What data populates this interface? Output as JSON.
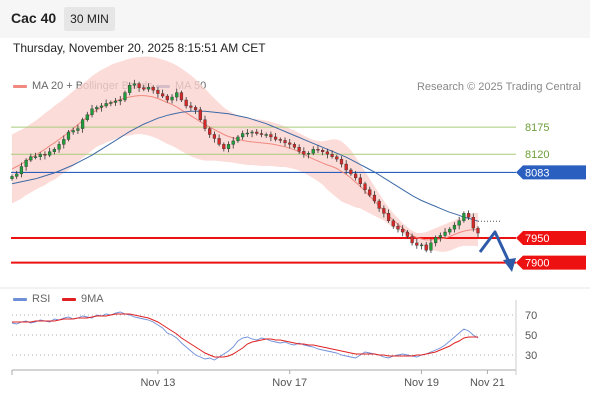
{
  "header": {
    "symbol": "Cac 40",
    "timeframe": "30 MIN",
    "datetime": "Thursday, November 20, 2025 8:15:51 AM CET"
  },
  "legend": {
    "ma_bb": {
      "label": "MA 20 + Bollinger Bands",
      "color": "#f08a80"
    },
    "ma50": {
      "label": "MA 50",
      "color": "#3d6aa6"
    },
    "credit": "Research © 2025 Trading Central"
  },
  "rsi_legend": {
    "rsi": {
      "label": "RSI",
      "color": "#6f8fd8"
    },
    "ma9": {
      "label": "9MA",
      "color": "#e02020"
    }
  },
  "chart_data": [
    {
      "type": "candlestick",
      "ylim": [
        7885,
        8230
      ],
      "levels": [
        {
          "value": 8175,
          "label": "8175",
          "kind": "resistance"
        },
        {
          "value": 8120,
          "label": "8120",
          "kind": "resistance"
        },
        {
          "value": 8083,
          "label": "8083",
          "kind": "pivot"
        },
        {
          "value": 7950,
          "label": "7950",
          "kind": "support"
        },
        {
          "value": 7900,
          "label": "7900",
          "kind": "support"
        }
      ],
      "x_tick_labels": [
        "Nov 13",
        "Nov 17",
        "Nov 19",
        "Nov 21"
      ],
      "close": [
        8075,
        8080,
        8095,
        8108,
        8115,
        8115,
        8120,
        8118,
        8125,
        8130,
        8140,
        8150,
        8165,
        8168,
        8172,
        8190,
        8200,
        8212,
        8215,
        8218,
        8223,
        8225,
        8228,
        8230,
        8245,
        8260,
        8263,
        8255,
        8252,
        8256,
        8250,
        8243,
        8238,
        8230,
        8236,
        8245,
        8230,
        8218,
        8215,
        8210,
        8190,
        8172,
        8160,
        8152,
        8140,
        8131,
        8140,
        8147,
        8155,
        8162,
        8163,
        8165,
        8162,
        8160,
        8160,
        8155,
        8150,
        8148,
        8143,
        8140,
        8134,
        8126,
        8120,
        8122,
        8130,
        8128,
        8125,
        8120,
        8115,
        8110,
        8100,
        8088,
        8080,
        8072,
        8060,
        8048,
        8037,
        8025,
        8010,
        8000,
        7985,
        7974,
        7968,
        7962,
        7953,
        7940,
        7935,
        7936,
        7925,
        7940,
        7951,
        7955,
        7962,
        7968,
        7976,
        7985,
        8000,
        7992,
        7970,
        7960
      ],
      "ma20": [
        8090,
        8095,
        8100,
        8106,
        8112,
        8118,
        8124,
        8130,
        8137,
        8143,
        8150,
        8157,
        8164,
        8172,
        8180,
        8188,
        8195,
        8203,
        8210,
        8215,
        8220,
        8224,
        8228,
        8231,
        8234,
        8236,
        8238,
        8239,
        8239,
        8238,
        8236,
        8233,
        8229,
        8225,
        8221,
        8216,
        8210,
        8204,
        8198,
        8192,
        8186,
        8180,
        8175,
        8170,
        8165,
        8160,
        8156,
        8153,
        8150,
        8148,
        8146,
        8145,
        8144,
        8143,
        8142,
        8141,
        8139,
        8137,
        8135,
        8132,
        8129,
        8125,
        8120,
        8115,
        8110,
        8106,
        8102,
        8098,
        8095,
        8091,
        8085,
        8079,
        8072,
        8063,
        8055,
        8045,
        8035,
        8025,
        8015,
        8005,
        7995,
        7986,
        7978,
        7970,
        7962,
        7955,
        7951,
        7948,
        7946,
        7946,
        7947,
        7948,
        7950,
        7953,
        7957,
        7961,
        7964,
        7966,
        7967,
        7967
      ],
      "upper_band": [
        8160,
        8165,
        8170,
        8175,
        8182,
        8188,
        8195,
        8203,
        8210,
        8218,
        8225,
        8232,
        8240,
        8248,
        8255,
        8263,
        8270,
        8278,
        8285,
        8291,
        8296,
        8301,
        8305,
        8308,
        8311,
        8314,
        8316,
        8317,
        8318,
        8318,
        8317,
        8315,
        8312,
        8309,
        8305,
        8300,
        8294,
        8287,
        8280,
        8272,
        8263,
        8253,
        8243,
        8233,
        8224,
        8215,
        8208,
        8203,
        8199,
        8196,
        8194,
        8192,
        8191,
        8190,
        8188,
        8186,
        8183,
        8180,
        8176,
        8172,
        8168,
        8163,
        8158,
        8153,
        8149,
        8147,
        8146,
        8148,
        8150,
        8150,
        8146,
        8138,
        8128,
        8114,
        8100,
        8085,
        8070,
        8055,
        8040,
        8025,
        8012,
        8000,
        7990,
        7980,
        7972,
        7965,
        7960,
        7960,
        7962,
        7966,
        7970,
        7974,
        7978,
        7982,
        7986,
        7990,
        7994,
        7998,
        8000,
        8001
      ],
      "lower_band": [
        8020,
        8025,
        8030,
        8037,
        8042,
        8048,
        8053,
        8057,
        8064,
        8068,
        8075,
        8082,
        8088,
        8096,
        8105,
        8113,
        8120,
        8128,
        8135,
        8139,
        8144,
        8147,
        8151,
        8154,
        8157,
        8158,
        8160,
        8161,
        8160,
        8158,
        8155,
        8151,
        8146,
        8141,
        8137,
        8132,
        8126,
        8121,
        8116,
        8112,
        8109,
        8107,
        8107,
        8107,
        8106,
        8105,
        8104,
        8103,
        8101,
        8100,
        8098,
        8098,
        8097,
        8096,
        8096,
        8096,
        8095,
        8094,
        8094,
        8092,
        8090,
        8087,
        8082,
        8077,
        8071,
        8065,
        8058,
        8048,
        8040,
        8032,
        8024,
        8020,
        8016,
        8012,
        8010,
        8005,
        8000,
        7995,
        7990,
        7985,
        7978,
        7972,
        7966,
        7960,
        7952,
        7945,
        7942,
        7936,
        7930,
        7926,
        7924,
        7922,
        7922,
        7924,
        7928,
        7932,
        7934,
        7934,
        7934,
        7933
      ],
      "ma50": [
        8060,
        8062,
        8064,
        8066,
        8068,
        8070,
        8073,
        8076,
        8079,
        8082,
        8086,
        8090,
        8094,
        8098,
        8103,
        8108,
        8113,
        8118,
        8124,
        8130,
        8136,
        8142,
        8148,
        8154,
        8160,
        8166,
        8171,
        8176,
        8181,
        8185,
        8189,
        8193,
        8196,
        8199,
        8201,
        8203,
        8205,
        8206,
        8207,
        8207,
        8207,
        8207,
        8206,
        8205,
        8204,
        8203,
        8202,
        8200,
        8198,
        8196,
        8194,
        8191,
        8188,
        8185,
        8182,
        8178,
        8174,
        8170,
        8166,
        8162,
        8158,
        8154,
        8150,
        8146,
        8142,
        8138,
        8134,
        8130,
        8126,
        8122,
        8118,
        8114,
        8109,
        8104,
        8099,
        8094,
        8089,
        8084,
        8078,
        8072,
        8066,
        8060,
        8054,
        8048,
        8042,
        8036,
        8031,
        8026,
        8022,
        8018,
        8014,
        8010,
        8006,
        8002,
        7999,
        7996,
        7992,
        7990,
        7987,
        7984
      ]
    },
    {
      "type": "line",
      "ylim": [
        15,
        85
      ],
      "y_tick_labels": [
        70,
        50,
        30
      ],
      "series": [
        {
          "name": "RSI",
          "values": [
            62,
            61,
            63,
            64,
            62,
            63,
            65,
            64,
            63,
            66,
            65,
            67,
            68,
            66,
            67,
            69,
            68,
            67,
            70,
            69,
            71,
            70,
            72,
            73,
            71,
            70,
            68,
            67,
            66,
            65,
            63,
            60,
            57,
            52,
            50,
            47,
            42,
            38,
            34,
            30,
            28,
            26,
            27,
            25,
            28,
            31,
            34,
            38,
            44,
            47,
            48,
            46,
            45,
            47,
            46,
            44,
            43,
            42,
            43,
            41,
            40,
            42,
            40,
            39,
            38,
            36,
            35,
            34,
            33,
            32,
            30,
            29,
            28,
            27,
            30,
            33,
            32,
            31,
            30,
            28,
            27,
            29,
            30,
            31,
            30,
            29,
            28,
            30,
            31,
            33,
            35,
            37,
            40,
            44,
            48,
            52,
            56,
            54,
            50,
            47
          ]
        },
        {
          "name": "9MA",
          "values": [
            63,
            63,
            63,
            63,
            63,
            64,
            64,
            64,
            64,
            64,
            65,
            66,
            66,
            66,
            67,
            67,
            67,
            68,
            69,
            69,
            69,
            70,
            71,
            71,
            71,
            71,
            70,
            69,
            68,
            67,
            65,
            63,
            60,
            57,
            54,
            51,
            47,
            44,
            41,
            38,
            35,
            32,
            30,
            28,
            28,
            28,
            29,
            31,
            34,
            37,
            41,
            43,
            44,
            45,
            46,
            46,
            45,
            45,
            44,
            43,
            42,
            41,
            41,
            40,
            40,
            39,
            38,
            37,
            36,
            35,
            34,
            33,
            32,
            31,
            31,
            31,
            31,
            31,
            30,
            30,
            29,
            29,
            29,
            29,
            29,
            29,
            30,
            30,
            31,
            32,
            33,
            35,
            37,
            39,
            42,
            44,
            47,
            48,
            48,
            48
          ]
        }
      ]
    }
  ]
}
